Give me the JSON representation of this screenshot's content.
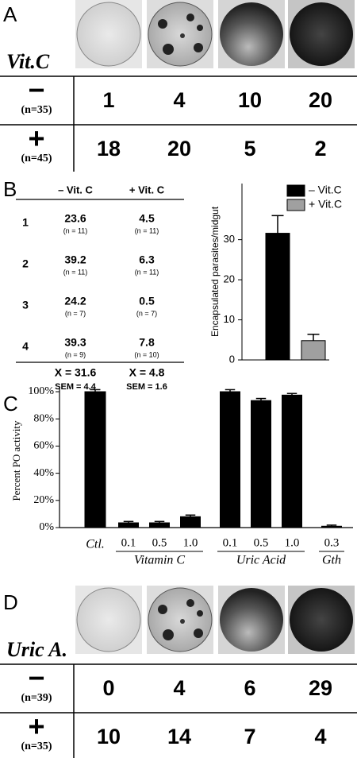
{
  "panel_a": {
    "letter": "A",
    "treatment": "Vit.C",
    "rows": [
      {
        "sign": "−",
        "n": "(n=35)",
        "values": [
          "1",
          "4",
          "10",
          "20"
        ]
      },
      {
        "sign": "+",
        "n": "(n=45)",
        "values": [
          "18",
          "20",
          "5",
          "2"
        ]
      }
    ]
  },
  "panel_b": {
    "letter": "B",
    "table": {
      "headers": [
        "– Vit. C",
        "+ Vit. C"
      ],
      "rows": [
        {
          "id": "1",
          "minus": "23.6",
          "minus_n": "(n = 11)",
          "plus": "4.5",
          "plus_n": "(n = 11)"
        },
        {
          "id": "2",
          "minus": "39.2",
          "minus_n": "(n = 11)",
          "plus": "6.3",
          "plus_n": "(n = 11)"
        },
        {
          "id": "3",
          "minus": "24.2",
          "minus_n": "(n = 7)",
          "plus": "0.5",
          "plus_n": "(n = 7)"
        },
        {
          "id": "4",
          "minus": "39.3",
          "minus_n": "(n = 9)",
          "plus": "7.8",
          "plus_n": "(n = 10)"
        }
      ],
      "footer": {
        "minus_mean": "X = 31.6",
        "minus_sem": "SEM = 4.4",
        "plus_mean": "X = 4.8",
        "plus_sem": "SEM = 1.6"
      }
    },
    "chart": {
      "type": "bar",
      "ylabel": "Encapsulated parasites/midgut",
      "ylim": [
        0,
        44
      ],
      "yticks": [
        0,
        10,
        20,
        30
      ],
      "legend": "upper right",
      "series": [
        {
          "name": "– Vit.C",
          "color": "#000000",
          "values": [
            31.6
          ],
          "errors": [
            4.4
          ]
        },
        {
          "name": "+ Vit.C",
          "color": "#a0a0a0",
          "values": [
            4.8
          ],
          "errors": [
            1.6
          ]
        }
      ]
    }
  },
  "panel_c": {
    "letter": "C",
    "chart": {
      "type": "bar",
      "ylabel": "Percent PO activity",
      "ylim": [
        0,
        100
      ],
      "yticks": [
        {
          "value": 0,
          "label": "0%"
        },
        {
          "value": 20,
          "label": "20%"
        },
        {
          "value": 40,
          "label": "40%"
        },
        {
          "value": 60,
          "label": "60%"
        },
        {
          "value": 80,
          "label": "80%"
        },
        {
          "value": 100,
          "label": "100%"
        }
      ],
      "color": "#000000",
      "control": {
        "label": "Ctl.",
        "value": 100,
        "error": 1.5
      },
      "groups": [
        {
          "name": "Vitamin C",
          "categories": [
            "0.1",
            "0.5",
            "1.0"
          ],
          "values": [
            3.5,
            3.5,
            8
          ],
          "errors": [
            1,
            1,
            1.2
          ]
        },
        {
          "name": "Uric Acid",
          "categories": [
            "0.1",
            "0.5",
            "1.0"
          ],
          "values": [
            100,
            93.5,
            97.5
          ],
          "errors": [
            1.5,
            1.5,
            1.2
          ]
        },
        {
          "name": "Gth",
          "categories": [
            "0.3"
          ],
          "values": [
            1
          ],
          "errors": [
            0.8
          ]
        }
      ]
    }
  },
  "panel_d": {
    "letter": "D",
    "treatment": "Uric A.",
    "rows": [
      {
        "sign": "−",
        "n": "(n=39)",
        "values": [
          "0",
          "4",
          "6",
          "29"
        ]
      },
      {
        "sign": "+",
        "n": "(n=35)",
        "values": [
          "10",
          "14",
          "7",
          "4"
        ]
      }
    ]
  }
}
